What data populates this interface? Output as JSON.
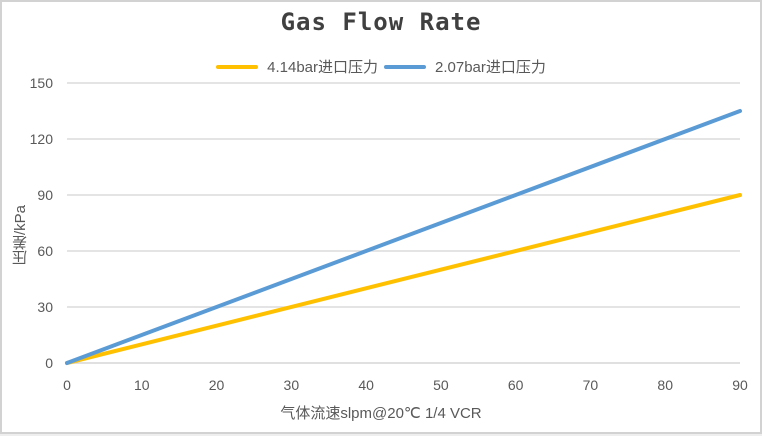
{
  "title": "Gas Flow Rate",
  "legend": {
    "items": [
      {
        "label": "4.14bar进口压力",
        "color": "#FFC000"
      },
      {
        "label": "2.07bar进口压力",
        "color": "#5B9BD5"
      }
    ]
  },
  "axes": {
    "y_title": "压差/kPa",
    "x_title": "气体流速slpm@20℃ 1/4 VCR"
  },
  "colors": {
    "gridline": "#DCDCDC",
    "axis_line": "#D6D6D6",
    "tick_text": "#595959",
    "title_text": "#404040",
    "series_yellow": "#FFC000",
    "series_blue": "#5B9BD5"
  },
  "chart_data": {
    "type": "line",
    "title": "Gas Flow Rate",
    "xlabel": "气体流速slpm@20℃ 1/4 VCR",
    "ylabel": "压差/kPa",
    "xlim": [
      0,
      90
    ],
    "ylim": [
      0,
      150
    ],
    "x_ticks": [
      0,
      10,
      20,
      30,
      40,
      50,
      60,
      70,
      80,
      90
    ],
    "y_ticks": [
      0,
      30,
      60,
      90,
      120,
      150
    ],
    "grid": "horizontal",
    "legend_position": "top",
    "series": [
      {
        "name": "4.14bar进口压力",
        "color": "#FFC000",
        "x": [
          0,
          90
        ],
        "y": [
          0,
          90
        ]
      },
      {
        "name": "2.07bar进口压力",
        "color": "#5B9BD5",
        "x": [
          0,
          90
        ],
        "y": [
          0,
          135
        ]
      }
    ]
  }
}
